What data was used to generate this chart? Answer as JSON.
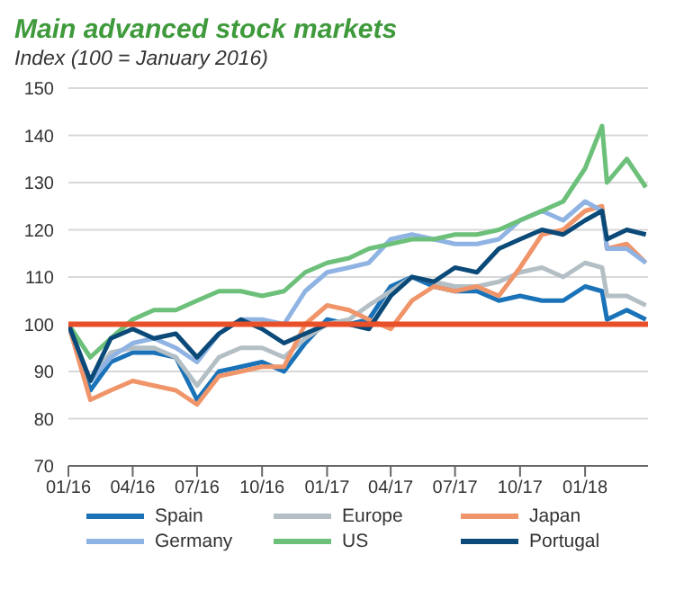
{
  "chart_data": {
    "type": "line",
    "title": "Main advanced stock markets",
    "subtitle": "Index (100 = January 2016)",
    "x": [
      "2016-01-01",
      "2016-02-01",
      "2016-03-01",
      "2016-04-01",
      "2016-05-01",
      "2016-06-01",
      "2016-07-01",
      "2016-08-01",
      "2016-09-01",
      "2016-10-01",
      "2016-11-01",
      "2016-12-01",
      "2017-01-01",
      "2017-02-01",
      "2017-03-01",
      "2017-04-01",
      "2017-05-01",
      "2017-06-01",
      "2017-07-01",
      "2017-08-01",
      "2017-09-01",
      "2017-10-01",
      "2017-11-01",
      "2017-12-01",
      "2018-01-01",
      "2018-01-25",
      "2018-02-01",
      "2018-03-01",
      "2018-03-28"
    ],
    "series": [
      {
        "name": "Spain",
        "color": "#1a73b8",
        "values": [
          100,
          86,
          92,
          94,
          94,
          93,
          84,
          90,
          91,
          92,
          90,
          96,
          101,
          100,
          101,
          108,
          110,
          108,
          107,
          107,
          105,
          106,
          105,
          105,
          108,
          107,
          101,
          103,
          101
        ]
      },
      {
        "name": "Europe",
        "color": "#b4bfc5",
        "values": [
          100,
          88,
          94,
          95,
          95,
          93,
          87,
          93,
          95,
          95,
          93,
          97,
          100,
          101,
          104,
          107,
          110,
          109,
          108,
          108,
          109,
          111,
          112,
          110,
          113,
          112,
          106,
          106,
          104
        ]
      },
      {
        "name": "Japan",
        "color": "#f0956a",
        "values": [
          100,
          84,
          86,
          88,
          87,
          86,
          83,
          89,
          90,
          91,
          91,
          100,
          104,
          103,
          101,
          99,
          105,
          108,
          107,
          108,
          106,
          112,
          119,
          120,
          124,
          125,
          116,
          117,
          113
        ]
      },
      {
        "name": "Germany",
        "color": "#8fb3e3",
        "values": [
          100,
          88,
          93,
          96,
          97,
          95,
          92,
          98,
          101,
          101,
          100,
          107,
          111,
          112,
          113,
          118,
          119,
          118,
          117,
          117,
          118,
          122,
          124,
          122,
          126,
          124,
          116,
          116,
          113
        ]
      },
      {
        "name": "US",
        "color": "#6cc07a",
        "values": [
          100,
          93,
          97,
          101,
          103,
          103,
          105,
          107,
          107,
          106,
          107,
          111,
          113,
          114,
          116,
          117,
          118,
          118,
          119,
          119,
          120,
          122,
          124,
          126,
          133,
          142,
          130,
          135,
          129
        ]
      },
      {
        "name": "Portugal",
        "color": "#0b4a78",
        "values": [
          100,
          88,
          97,
          99,
          97,
          98,
          93,
          98,
          101,
          99,
          96,
          98,
          100,
          100,
          99,
          106,
          110,
          109,
          112,
          111,
          116,
          118,
          120,
          119,
          122,
          124,
          118,
          120,
          119
        ]
      }
    ],
    "xlim": [
      "2016-01-01",
      "2018-03-31"
    ],
    "xticks": [
      {
        "value": "2016-01-01",
        "label": "01/16"
      },
      {
        "value": "2016-04-01",
        "label": "04/16"
      },
      {
        "value": "2016-07-01",
        "label": "07/16"
      },
      {
        "value": "2016-10-01",
        "label": "10/16"
      },
      {
        "value": "2017-01-01",
        "label": "01/17"
      },
      {
        "value": "2017-04-01",
        "label": "04/17"
      },
      {
        "value": "2017-07-01",
        "label": "07/17"
      },
      {
        "value": "2017-10-01",
        "label": "10/17"
      },
      {
        "value": "2018-01-01",
        "label": "01/18"
      }
    ],
    "ylim": [
      70,
      150
    ],
    "yticks": [
      70,
      80,
      90,
      100,
      110,
      120,
      130,
      140,
      150
    ],
    "ref_lines": [
      {
        "axis": "y",
        "value": 100,
        "color": "#e8502a"
      }
    ],
    "grid": "y",
    "legend": "bottom",
    "marker": "none",
    "line_style": "solid"
  }
}
